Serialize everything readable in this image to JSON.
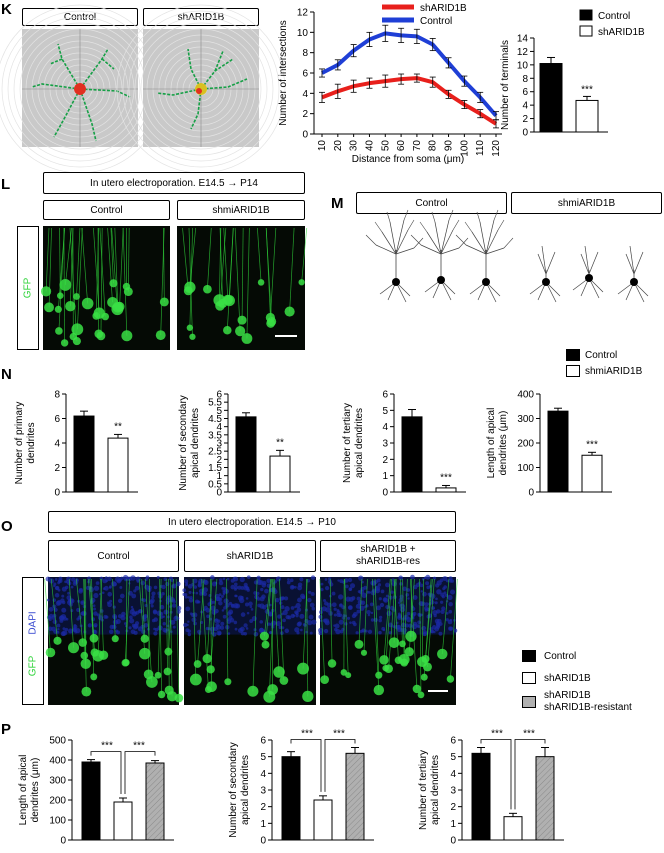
{
  "panels": {
    "k": "K",
    "l": "L",
    "m": "M",
    "n": "N",
    "o": "O",
    "p": "P"
  },
  "k": {
    "image_labels": [
      "Control",
      "shARID1B"
    ],
    "line_chart": {
      "type": "line",
      "x": [
        10,
        20,
        30,
        40,
        50,
        60,
        70,
        80,
        90,
        100,
        110,
        120
      ],
      "xlabel": "Distance from soma (μm)",
      "ylabel": "Number of intersections",
      "ylim": [
        0,
        12
      ],
      "yticks": [
        0,
        2,
        4,
        6,
        8,
        10,
        12
      ],
      "series": [
        {
          "name": "shARID1B",
          "color": "#e8201c",
          "values": [
            3.6,
            4.2,
            4.7,
            5.0,
            5.2,
            5.4,
            5.5,
            5.1,
            3.9,
            2.9,
            2.0,
            1.0
          ],
          "err": [
            0.5,
            0.7,
            0.6,
            0.5,
            0.6,
            0.5,
            0.4,
            0.5,
            0.4,
            0.4,
            0.4,
            0.4
          ]
        },
        {
          "name": "Control",
          "color": "#1f3fd6",
          "values": [
            6.0,
            6.8,
            8.2,
            9.3,
            9.9,
            9.7,
            9.6,
            8.8,
            7.0,
            5.2,
            3.6,
            1.8
          ],
          "err": [
            0.4,
            0.5,
            0.6,
            0.7,
            0.8,
            0.7,
            0.7,
            0.6,
            0.5,
            0.5,
            0.5,
            0.4
          ]
        }
      ]
    },
    "bar_chart": {
      "type": "bar",
      "categories": [
        "Control",
        "shARID1B"
      ],
      "values": [
        10.2,
        4.7
      ],
      "err": [
        0.9,
        0.6
      ],
      "ylabel": "Number of terminals",
      "ylim": [
        0,
        14
      ],
      "yticks": [
        0,
        2,
        4,
        6,
        8,
        10,
        12,
        14
      ],
      "fills": [
        "#000000",
        "#ffffff"
      ],
      "stars": [
        "",
        "***"
      ]
    }
  },
  "l": {
    "header": "In utero electroporation.   E14.5  →  P14",
    "conditions": [
      "Control",
      "shmiARID1B"
    ],
    "side_label": "GFP"
  },
  "m": {
    "conditions": [
      "Control",
      "shmiARID1B"
    ]
  },
  "n": {
    "legend": [
      "Control",
      "shmiARID1B"
    ],
    "charts": [
      {
        "type": "bar",
        "categories": [
          "Control",
          "shmiARID1B"
        ],
        "values": [
          6.2,
          4.4
        ],
        "err": [
          0.4,
          0.3
        ],
        "ylabel": "Number of primary\ndendrites",
        "ylim": [
          0,
          8
        ],
        "yticks": [
          0,
          2,
          4,
          6,
          8
        ],
        "stars": "**"
      },
      {
        "type": "bar",
        "categories": [
          "Control",
          "shmiARID1B"
        ],
        "values": [
          4.6,
          2.2
        ],
        "err": [
          0.25,
          0.35
        ],
        "ylabel": "Number of secondary\napical dendrites",
        "ylim": [
          0,
          6
        ],
        "yticks": [
          0,
          0.5,
          1,
          1.5,
          2,
          2.5,
          3,
          3.5,
          4,
          4.5,
          5,
          5.5,
          6
        ],
        "stars": "**"
      },
      {
        "type": "bar",
        "categories": [
          "Control",
          "shmiARID1B"
        ],
        "values": [
          4.6,
          0.25
        ],
        "err": [
          0.45,
          0.15
        ],
        "ylabel": "Number of tertiary\napical dendrites",
        "ylim": [
          0,
          6
        ],
        "yticks": [
          0,
          1,
          2,
          3,
          4,
          5,
          6
        ],
        "stars": "***"
      },
      {
        "type": "bar",
        "categories": [
          "Control",
          "shmiARID1B"
        ],
        "values": [
          330,
          150
        ],
        "err": [
          12,
          12
        ],
        "ylabel": "Length of apical\ndendrites (μm)",
        "ylim": [
          0,
          400
        ],
        "yticks": [
          0,
          100,
          200,
          300,
          400
        ],
        "stars": "***"
      }
    ]
  },
  "o": {
    "header": "In utero electroporation.   E14.5  →  P10",
    "conditions": [
      "Control",
      "shARID1B",
      "shARID1B +\nshARID1B-res"
    ],
    "side_label_1": "GFP",
    "side_label_2": "DAPI",
    "legend": [
      "Control",
      "shARID1B",
      "shARID1B\nshARID1B-resistant"
    ]
  },
  "p": {
    "charts": [
      {
        "type": "bar",
        "categories": [
          "Control",
          "shARID1B",
          "shARID1B shARID1B-resistant"
        ],
        "values": [
          390,
          190,
          385
        ],
        "err": [
          12,
          20,
          12
        ],
        "ylabel": "Length of apical\ndendrites (μm)",
        "ylim": [
          0,
          500
        ],
        "yticks": [
          0,
          100,
          200,
          300,
          400,
          500
        ],
        "stars": [
          "***",
          "***"
        ]
      },
      {
        "type": "bar",
        "categories": [
          "Control",
          "shARID1B",
          "shARID1B shARID1B-resistant"
        ],
        "values": [
          5.0,
          2.4,
          5.2
        ],
        "err": [
          0.3,
          0.25,
          0.35
        ],
        "ylabel": "Number of secondary\napical dendrites",
        "ylim": [
          0,
          6
        ],
        "yticks": [
          0,
          1,
          2,
          3,
          4,
          5,
          6
        ],
        "stars": [
          "***",
          "***"
        ]
      },
      {
        "type": "bar",
        "categories": [
          "Control",
          "shARID1B",
          "shARID1B shARID1B-resistant"
        ],
        "values": [
          5.2,
          1.4,
          5.0
        ],
        "err": [
          0.35,
          0.2,
          0.55
        ],
        "ylabel": "Number of tertiary\napical dendrites",
        "ylim": [
          0,
          6
        ],
        "yticks": [
          0,
          1,
          2,
          3,
          4,
          5,
          6
        ],
        "stars": [
          "***",
          "***"
        ]
      }
    ]
  },
  "colors": {
    "gfp": "#2fd33a",
    "dapi": "#1a2a9a",
    "control": "#000000",
    "knockdown": "#ffffff",
    "rescue": "#b0b0b0"
  }
}
